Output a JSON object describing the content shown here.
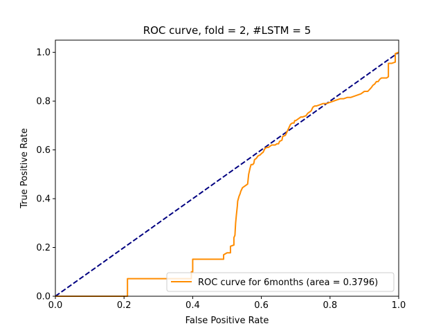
{
  "chart_data": {
    "type": "line",
    "title": "ROC curve, fold = 2, #LSTM = 5",
    "xlabel": "False Positive Rate",
    "ylabel": "True Positive Rate",
    "xlim": [
      0.0,
      1.0
    ],
    "ylim": [
      0.0,
      1.05
    ],
    "xticks": [
      "0.0",
      "0.2",
      "0.4",
      "0.6",
      "0.8",
      "1.0"
    ],
    "yticks": [
      "0.0",
      "0.2",
      "0.4",
      "0.6",
      "0.8",
      "1.0"
    ],
    "grid": false,
    "legend_position": "lower-right",
    "series": [
      {
        "name": "ROC curve for 6months (area = 0.3796)",
        "color": "#ff8c00",
        "style": "solid",
        "x": [
          0.0,
          0.21,
          0.21,
          0.396,
          0.396,
          0.4,
          0.4,
          0.49,
          0.49,
          0.5,
          0.51,
          0.51,
          0.52,
          0.52,
          0.523,
          0.525,
          0.527,
          0.53,
          0.531,
          0.533,
          0.535,
          0.538,
          0.54,
          0.545,
          0.55,
          0.555,
          0.56,
          0.563,
          0.567,
          0.57,
          0.575,
          0.578,
          0.58,
          0.585,
          0.59,
          0.597,
          0.6,
          0.605,
          0.61,
          0.615,
          0.62,
          0.63,
          0.64,
          0.645,
          0.65,
          0.653,
          0.66,
          0.662,
          0.67,
          0.68,
          0.685,
          0.69,
          0.695,
          0.697,
          0.7,
          0.71,
          0.715,
          0.72,
          0.73,
          0.735,
          0.74,
          0.745,
          0.75,
          0.755,
          0.76,
          0.77,
          0.78,
          0.79,
          0.8,
          0.81,
          0.82,
          0.83,
          0.84,
          0.85,
          0.86,
          0.87,
          0.88,
          0.89,
          0.9,
          0.91,
          0.92,
          0.925,
          0.93,
          0.935,
          0.94,
          0.945,
          0.95,
          0.965,
          0.97,
          0.97,
          0.98,
          0.99,
          0.99,
          1.0
        ],
        "y": [
          0.0,
          0.0,
          0.072,
          0.072,
          0.1,
          0.1,
          0.152,
          0.152,
          0.17,
          0.178,
          0.178,
          0.205,
          0.21,
          0.24,
          0.25,
          0.3,
          0.33,
          0.37,
          0.39,
          0.4,
          0.41,
          0.42,
          0.43,
          0.445,
          0.45,
          0.455,
          0.46,
          0.5,
          0.525,
          0.54,
          0.54,
          0.545,
          0.56,
          0.565,
          0.575,
          0.58,
          0.585,
          0.59,
          0.605,
          0.61,
          0.61,
          0.62,
          0.62,
          0.625,
          0.625,
          0.635,
          0.64,
          0.655,
          0.66,
          0.69,
          0.705,
          0.71,
          0.71,
          0.72,
          0.72,
          0.73,
          0.735,
          0.735,
          0.74,
          0.75,
          0.755,
          0.76,
          0.775,
          0.78,
          0.78,
          0.785,
          0.79,
          0.79,
          0.795,
          0.8,
          0.805,
          0.81,
          0.81,
          0.815,
          0.815,
          0.82,
          0.825,
          0.83,
          0.84,
          0.84,
          0.855,
          0.865,
          0.87,
          0.88,
          0.88,
          0.89,
          0.895,
          0.895,
          0.9,
          0.955,
          0.955,
          0.96,
          0.995,
          1.0
        ]
      },
      {
        "name": "",
        "color": "#000080",
        "style": "dashed",
        "x": [
          0.0,
          1.0
        ],
        "y": [
          0.0,
          1.0
        ]
      }
    ]
  }
}
